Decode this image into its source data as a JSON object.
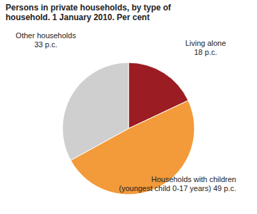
{
  "chart_data": {
    "type": "pie",
    "title": "Persons in private households, by type of household. 1 January 2010. Per cent",
    "categories": [
      "Living alone",
      "Households with children (youngest child 0-17 years)",
      "Other households"
    ],
    "values": [
      18,
      49,
      33
    ],
    "value_labels": [
      "18 p.c.",
      "49 p.c.",
      "33 p.c."
    ],
    "colors": [
      "#9b1c22",
      "#f39a3a",
      "#cfcfcf"
    ],
    "data_labels": true
  }
}
